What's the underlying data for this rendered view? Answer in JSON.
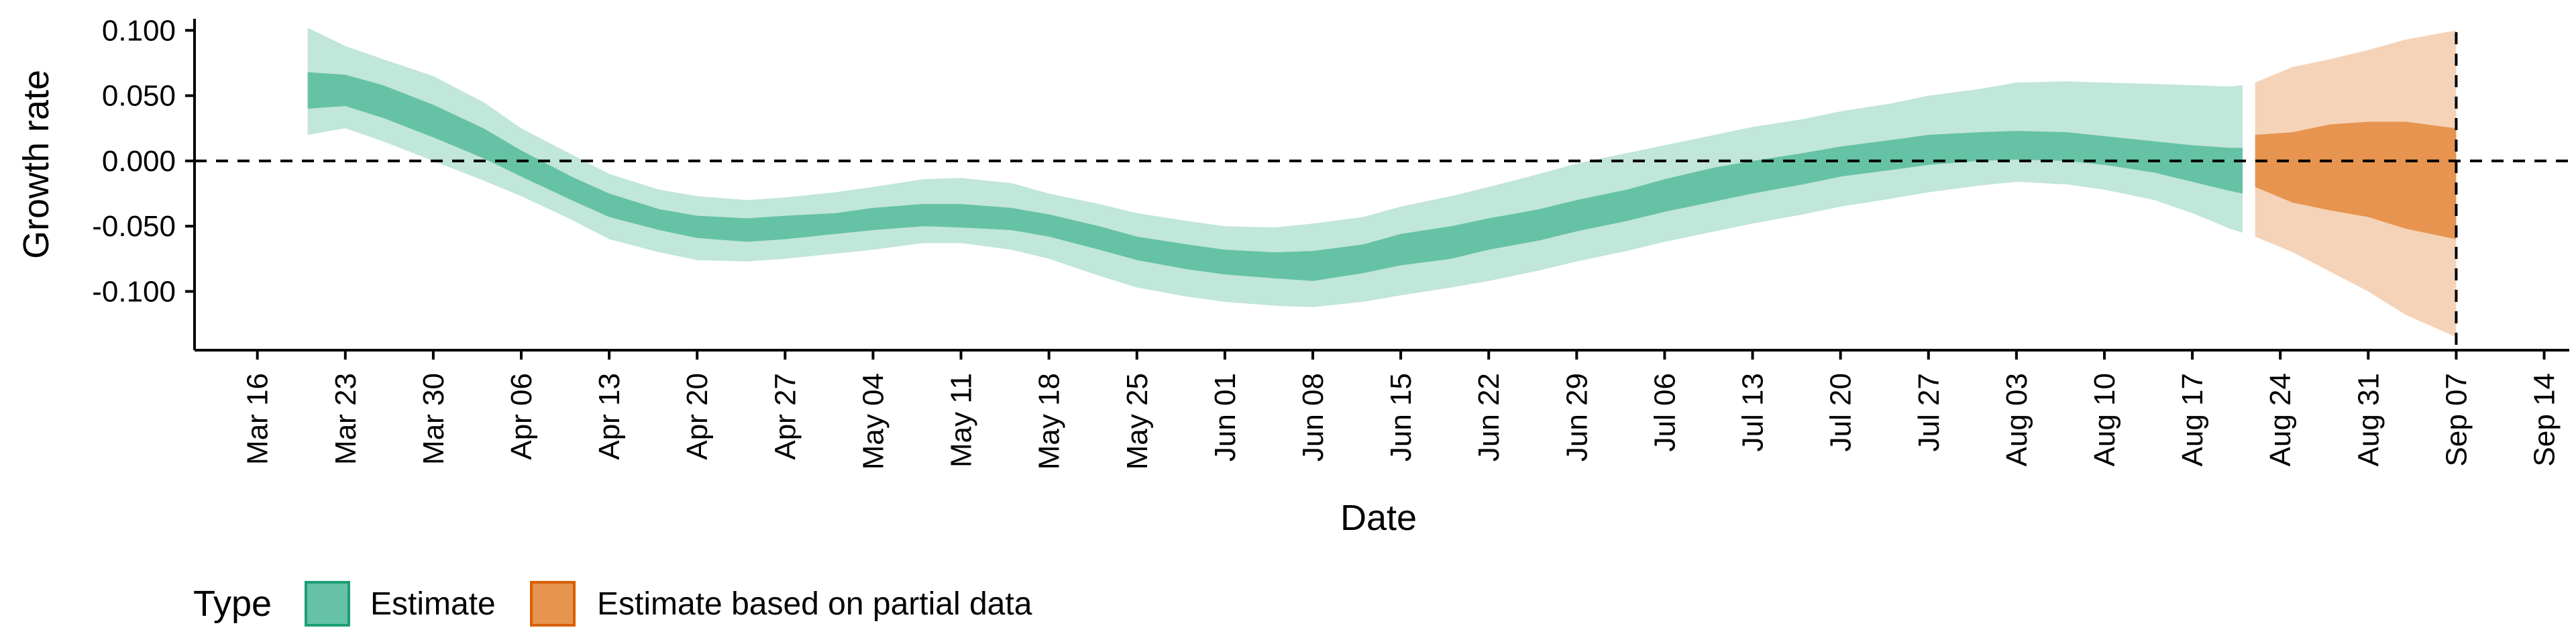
{
  "chart_data": {
    "type": "area",
    "xlabel": "Date",
    "ylabel": "Growth rate",
    "x_ticks": [
      "Mar 16",
      "Mar 23",
      "Mar 30",
      "Apr 06",
      "Apr 13",
      "Apr 20",
      "Apr 27",
      "May 04",
      "May 11",
      "May 18",
      "May 25",
      "Jun 01",
      "Jun 08",
      "Jun 15",
      "Jun 22",
      "Jun 29",
      "Jul 06",
      "Jul 13",
      "Jul 20",
      "Jul 27",
      "Aug 03",
      "Aug 10",
      "Aug 17",
      "Aug 24",
      "Aug 31",
      "Sep 07",
      "Sep 14"
    ],
    "y_ticks": [
      0.1,
      0.05,
      0.0,
      -0.05,
      -0.1
    ],
    "y_tick_labels": [
      "0.100",
      "0.050",
      "0.000",
      "-0.050",
      "-0.100"
    ],
    "ylim": [
      -0.145,
      0.113
    ],
    "xlim": [
      "2020-03-11",
      "2020-09-16"
    ],
    "reference_lines": [
      {
        "axis": "y",
        "value": 0.0,
        "style": "dashed"
      },
      {
        "axis": "x",
        "value": "2020-09-07",
        "style": "dashed"
      }
    ],
    "legend": {
      "title": "Type",
      "position": "bottom",
      "items": [
        {
          "label": "Estimate",
          "color": "#66c2a5"
        },
        {
          "label": "Estimate based on partial data",
          "color": "#e6944f"
        }
      ]
    },
    "series": [
      {
        "name": "Estimate",
        "color": "#66c2a5",
        "points": [
          {
            "date": "2020-03-20",
            "lower90": 0.02,
            "lower50": 0.04,
            "upper50": 0.068,
            "upper90": 0.102
          },
          {
            "date": "2020-03-23",
            "lower90": 0.025,
            "lower50": 0.042,
            "upper50": 0.066,
            "upper90": 0.088
          },
          {
            "date": "2020-03-26",
            "lower90": 0.015,
            "lower50": 0.033,
            "upper50": 0.058,
            "upper90": 0.078
          },
          {
            "date": "2020-03-30",
            "lower90": 0.0,
            "lower50": 0.018,
            "upper50": 0.043,
            "upper90": 0.065
          },
          {
            "date": "2020-04-03",
            "lower90": -0.015,
            "lower50": 0.002,
            "upper50": 0.025,
            "upper90": 0.045
          },
          {
            "date": "2020-04-06",
            "lower90": -0.027,
            "lower50": -0.012,
            "upper50": 0.008,
            "upper90": 0.025
          },
          {
            "date": "2020-04-10",
            "lower90": -0.045,
            "lower50": -0.03,
            "upper50": -0.012,
            "upper90": 0.005
          },
          {
            "date": "2020-04-13",
            "lower90": -0.06,
            "lower50": -0.043,
            "upper50": -0.025,
            "upper90": -0.01
          },
          {
            "date": "2020-04-17",
            "lower90": -0.07,
            "lower50": -0.053,
            "upper50": -0.037,
            "upper90": -0.022
          },
          {
            "date": "2020-04-20",
            "lower90": -0.076,
            "lower50": -0.059,
            "upper50": -0.042,
            "upper90": -0.027
          },
          {
            "date": "2020-04-24",
            "lower90": -0.077,
            "lower50": -0.062,
            "upper50": -0.044,
            "upper90": -0.03
          },
          {
            "date": "2020-04-27",
            "lower90": -0.075,
            "lower50": -0.06,
            "upper50": -0.042,
            "upper90": -0.028
          },
          {
            "date": "2020-05-01",
            "lower90": -0.071,
            "lower50": -0.056,
            "upper50": -0.04,
            "upper90": -0.024
          },
          {
            "date": "2020-05-04",
            "lower90": -0.068,
            "lower50": -0.053,
            "upper50": -0.036,
            "upper90": -0.02
          },
          {
            "date": "2020-05-08",
            "lower90": -0.063,
            "lower50": -0.05,
            "upper50": -0.033,
            "upper90": -0.014
          },
          {
            "date": "2020-05-11",
            "lower90": -0.063,
            "lower50": -0.051,
            "upper50": -0.033,
            "upper90": -0.013
          },
          {
            "date": "2020-05-15",
            "lower90": -0.068,
            "lower50": -0.053,
            "upper50": -0.036,
            "upper90": -0.017
          },
          {
            "date": "2020-05-18",
            "lower90": -0.075,
            "lower50": -0.058,
            "upper50": -0.041,
            "upper90": -0.025
          },
          {
            "date": "2020-05-22",
            "lower90": -0.088,
            "lower50": -0.068,
            "upper50": -0.05,
            "upper90": -0.033
          },
          {
            "date": "2020-05-25",
            "lower90": -0.097,
            "lower50": -0.076,
            "upper50": -0.058,
            "upper90": -0.04
          },
          {
            "date": "2020-05-29",
            "lower90": -0.104,
            "lower50": -0.083,
            "upper50": -0.064,
            "upper90": -0.046
          },
          {
            "date": "2020-06-01",
            "lower90": -0.108,
            "lower50": -0.087,
            "upper50": -0.068,
            "upper90": -0.05
          },
          {
            "date": "2020-06-05",
            "lower90": -0.111,
            "lower50": -0.09,
            "upper50": -0.07,
            "upper90": -0.051
          },
          {
            "date": "2020-06-08",
            "lower90": -0.112,
            "lower50": -0.092,
            "upper50": -0.069,
            "upper90": -0.048
          },
          {
            "date": "2020-06-12",
            "lower90": -0.108,
            "lower50": -0.086,
            "upper50": -0.064,
            "upper90": -0.043
          },
          {
            "date": "2020-06-15",
            "lower90": -0.103,
            "lower50": -0.08,
            "upper50": -0.056,
            "upper90": -0.035
          },
          {
            "date": "2020-06-19",
            "lower90": -0.097,
            "lower50": -0.075,
            "upper50": -0.05,
            "upper90": -0.027
          },
          {
            "date": "2020-06-22",
            "lower90": -0.092,
            "lower50": -0.068,
            "upper50": -0.044,
            "upper90": -0.02
          },
          {
            "date": "2020-06-26",
            "lower90": -0.084,
            "lower50": -0.061,
            "upper50": -0.037,
            "upper90": -0.01
          },
          {
            "date": "2020-06-29",
            "lower90": -0.077,
            "lower50": -0.054,
            "upper50": -0.03,
            "upper90": -0.002
          },
          {
            "date": "2020-07-03",
            "lower90": -0.069,
            "lower50": -0.046,
            "upper50": -0.022,
            "upper90": 0.006
          },
          {
            "date": "2020-07-06",
            "lower90": -0.062,
            "lower50": -0.039,
            "upper50": -0.014,
            "upper90": 0.012
          },
          {
            "date": "2020-07-10",
            "lower90": -0.054,
            "lower50": -0.031,
            "upper50": -0.005,
            "upper90": 0.02
          },
          {
            "date": "2020-07-13",
            "lower90": -0.048,
            "lower50": -0.025,
            "upper50": 0.0,
            "upper90": 0.026
          },
          {
            "date": "2020-07-17",
            "lower90": -0.041,
            "lower50": -0.018,
            "upper50": 0.006,
            "upper90": 0.032
          },
          {
            "date": "2020-07-20",
            "lower90": -0.035,
            "lower50": -0.012,
            "upper50": 0.011,
            "upper90": 0.038
          },
          {
            "date": "2020-07-24",
            "lower90": -0.029,
            "lower50": -0.007,
            "upper50": 0.016,
            "upper90": 0.044
          },
          {
            "date": "2020-07-27",
            "lower90": -0.024,
            "lower50": -0.003,
            "upper50": 0.02,
            "upper90": 0.05
          },
          {
            "date": "2020-07-31",
            "lower90": -0.019,
            "lower50": 0.0,
            "upper50": 0.022,
            "upper90": 0.055
          },
          {
            "date": "2020-08-03",
            "lower90": -0.016,
            "lower50": 0.001,
            "upper50": 0.023,
            "upper90": 0.06
          },
          {
            "date": "2020-08-07",
            "lower90": -0.018,
            "lower50": 0.0,
            "upper50": 0.022,
            "upper90": 0.061
          },
          {
            "date": "2020-08-10",
            "lower90": -0.022,
            "lower50": -0.003,
            "upper50": 0.019,
            "upper90": 0.06
          },
          {
            "date": "2020-08-14",
            "lower90": -0.03,
            "lower50": -0.009,
            "upper50": 0.015,
            "upper90": 0.059
          },
          {
            "date": "2020-08-17",
            "lower90": -0.04,
            "lower50": -0.016,
            "upper50": 0.012,
            "upper90": 0.058
          },
          {
            "date": "2020-08-20",
            "lower90": -0.052,
            "lower50": -0.023,
            "upper50": 0.01,
            "upper90": 0.057
          },
          {
            "date": "2020-08-21",
            "lower90": -0.055,
            "lower50": -0.025,
            "upper50": 0.01,
            "upper90": 0.058
          }
        ]
      },
      {
        "name": "Estimate based on partial data",
        "color": "#e6944f",
        "points": [
          {
            "date": "2020-08-22",
            "lower90": -0.058,
            "lower50": -0.02,
            "upper50": 0.02,
            "upper90": 0.06
          },
          {
            "date": "2020-08-25",
            "lower90": -0.07,
            "lower50": -0.032,
            "upper50": 0.022,
            "upper90": 0.072
          },
          {
            "date": "2020-08-28",
            "lower90": -0.085,
            "lower50": -0.038,
            "upper50": 0.028,
            "upper90": 0.078
          },
          {
            "date": "2020-08-31",
            "lower90": -0.1,
            "lower50": -0.043,
            "upper50": 0.03,
            "upper90": 0.085
          },
          {
            "date": "2020-09-03",
            "lower90": -0.118,
            "lower50": -0.052,
            "upper50": 0.03,
            "upper90": 0.093
          },
          {
            "date": "2020-09-07",
            "lower90": -0.135,
            "lower50": -0.06,
            "upper50": 0.025,
            "upper90": 0.1
          }
        ]
      }
    ]
  }
}
